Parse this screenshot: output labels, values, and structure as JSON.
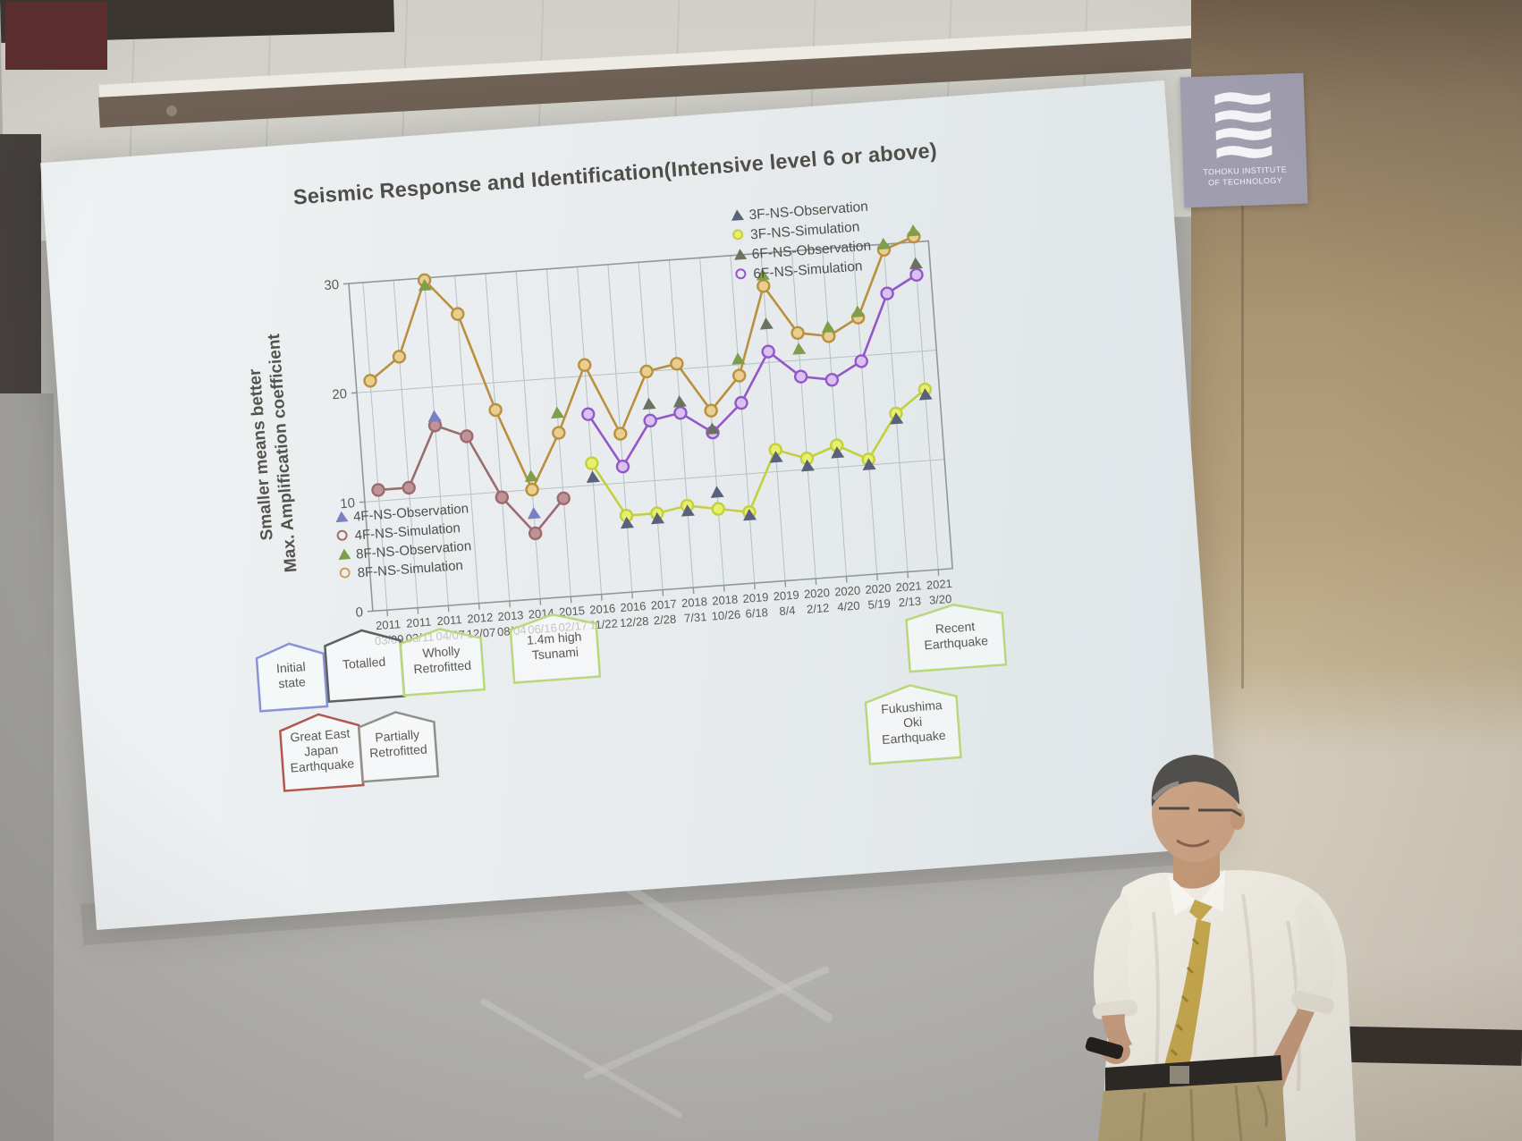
{
  "slide": {
    "title": "Seismic Response and Identification(Intensive level 6 or above)",
    "logo": {
      "line1": "TOHOKU INSTITUTE",
      "line2": "OF TECHNOLOGY"
    },
    "y_axis": {
      "outer_label": "Smaller means better",
      "inner_label": "Max. Amplification coefficient",
      "ticks": [
        0,
        10,
        20,
        30
      ]
    },
    "legend_right": [
      {
        "label": "3F-NS-Observation",
        "marker": "triangle",
        "color": "#59627a"
      },
      {
        "label": "3F-NS-Simulation",
        "marker": "circle-fill",
        "color": "#c3cf3d",
        "fill": "#e6f06d"
      },
      {
        "label": "6F-NS-Observation",
        "marker": "triangle",
        "color": "#6b7260"
      },
      {
        "label": "6F-NS-Simulation",
        "marker": "circle-open",
        "color": "#9257c9"
      }
    ],
    "legend_left": [
      {
        "label": "4F-NS-Observation",
        "marker": "triangle",
        "color": "#7b80c4"
      },
      {
        "label": "4F-NS-Simulation",
        "marker": "circle-open",
        "color": "#9c6b70"
      },
      {
        "label": "8F-NS-Observation",
        "marker": "triangle",
        "color": "#7f9d4a"
      },
      {
        "label": "8F-NS-Simulation",
        "marker": "circle-open",
        "color": "#d0a050"
      }
    ],
    "annotations": {
      "initial_state": {
        "label": "Initial\nstate",
        "border": "#8a93d8"
      },
      "totalled": {
        "label": "Totalled",
        "border": "#5f5f5f"
      },
      "wholly_retrofitted": {
        "label": "Wholly\nRetrofitted",
        "border": "#b9d87d"
      },
      "tsunami": {
        "label": "1.4m high\nTsunami",
        "border": "#b9d87d"
      },
      "recent_earthquake": {
        "label": "Recent\nEarthquake",
        "border": "#b9d87d"
      },
      "great_east_japan": {
        "label": "Great East\nJapan\nEarthquake",
        "border": "#b2574d"
      },
      "partially_retrofitted": {
        "label": "Partially\nRetrofitted",
        "border": "#90908a"
      },
      "fukushima_oki": {
        "label": "Fukushima\nOki\nEarthquake",
        "border": "#b9d87d"
      }
    }
  },
  "chart_data": {
    "type": "line",
    "title": "Seismic Response and Identification(Intensive level 6 or above)",
    "ylabel": "Max. Amplification coefficient",
    "ylabel_note": "Smaller means better",
    "ylim": [
      0,
      30
    ],
    "grid": true,
    "categories": [
      {
        "year": "2011",
        "date": "03/09"
      },
      {
        "year": "2011",
        "date": "03/11"
      },
      {
        "year": "2011",
        "date": "04/07"
      },
      {
        "year": "2012",
        "date": "12/07"
      },
      {
        "year": "2013",
        "date": "08/04"
      },
      {
        "year": "2014",
        "date": "06/16"
      },
      {
        "year": "2015",
        "date": "02/17"
      },
      {
        "year": "2016",
        "date": "11/22"
      },
      {
        "year": "2016",
        "date": "12/28"
      },
      {
        "year": "2017",
        "date": "2/28"
      },
      {
        "year": "2018",
        "date": "7/31"
      },
      {
        "year": "2018",
        "date": "10/26"
      },
      {
        "year": "2019",
        "date": "6/18"
      },
      {
        "year": "2019",
        "date": "8/4"
      },
      {
        "year": "2020",
        "date": "2/12"
      },
      {
        "year": "2020",
        "date": "4/20"
      },
      {
        "year": "2020",
        "date": "5/19"
      },
      {
        "year": "2021",
        "date": "2/13"
      },
      {
        "year": "2021",
        "date": "3/20"
      }
    ],
    "series": [
      {
        "name": "8F-NS-Simulation",
        "role": "simulation",
        "marker": "circle-open",
        "color": "#b9903e",
        "fill": "#e9cf8f",
        "values": [
          21,
          23,
          29.8,
          26.5,
          17.5,
          10,
          15,
          21,
          14.5,
          20,
          20.5,
          16,
          19,
          27,
          22.5,
          22,
          23.5,
          29.5,
          30.5
        ]
      },
      {
        "name": "4F-NS-Simulation",
        "role": "simulation",
        "marker": "circle-open",
        "color": "#9c6b70",
        "fill": "#c09396",
        "values": [
          11,
          11,
          16.5,
          15.3,
          9.5,
          6,
          9,
          null,
          null,
          null,
          null,
          null,
          null,
          null,
          null,
          null,
          null,
          null,
          null
        ]
      },
      {
        "name": "6F-NS-Simulation",
        "role": "simulation",
        "marker": "circle-open",
        "color": "#9257c9",
        "fill": "#d9c2ef",
        "values": [
          null,
          null,
          null,
          null,
          null,
          null,
          null,
          16.5,
          11.5,
          15.5,
          16,
          14,
          16.5,
          21,
          18.5,
          18,
          19.5,
          25.5,
          27
        ]
      },
      {
        "name": "3F-NS-Simulation",
        "role": "simulation",
        "marker": "circle-fill",
        "color": "#c3cf3d",
        "fill": "#e6f06d",
        "values": [
          null,
          null,
          null,
          null,
          null,
          null,
          null,
          12,
          7,
          7,
          7.5,
          7,
          6.5,
          12,
          11,
          12,
          10.5,
          14.5,
          16.5
        ]
      },
      {
        "name": "4F-NS-Observation",
        "role": "observation",
        "marker": "triangle",
        "color": "#7b80c4",
        "values": [
          null,
          null,
          17.3,
          null,
          null,
          7.8,
          null,
          null,
          null,
          null,
          null,
          null,
          null,
          null,
          null,
          null,
          null,
          null,
          null
        ]
      },
      {
        "name": "8F-NS-Observation",
        "role": "observation",
        "marker": "triangle",
        "color": "#7f9d4a",
        "values": [
          null,
          null,
          29.3,
          null,
          null,
          11.2,
          16.8,
          null,
          null,
          null,
          null,
          null,
          20.5,
          28,
          21,
          22.8,
          24,
          30,
          31
        ]
      },
      {
        "name": "3F-NS-Observation",
        "role": "observation",
        "marker": "triangle",
        "color": "#59627a",
        "values": [
          null,
          null,
          null,
          null,
          null,
          null,
          null,
          10.7,
          6.3,
          6.5,
          7,
          8.5,
          6.2,
          11.3,
          10.3,
          11.3,
          10,
          14,
          16
        ]
      },
      {
        "name": "6F-NS-Observation",
        "role": "observation",
        "marker": "triangle",
        "color": "#6b7260",
        "values": [
          null,
          null,
          null,
          null,
          null,
          null,
          null,
          null,
          null,
          17,
          17,
          14.3,
          null,
          23.5,
          null,
          null,
          null,
          null,
          28
        ]
      }
    ],
    "legend_position": [
      "top-right",
      "bottom-left"
    ]
  }
}
